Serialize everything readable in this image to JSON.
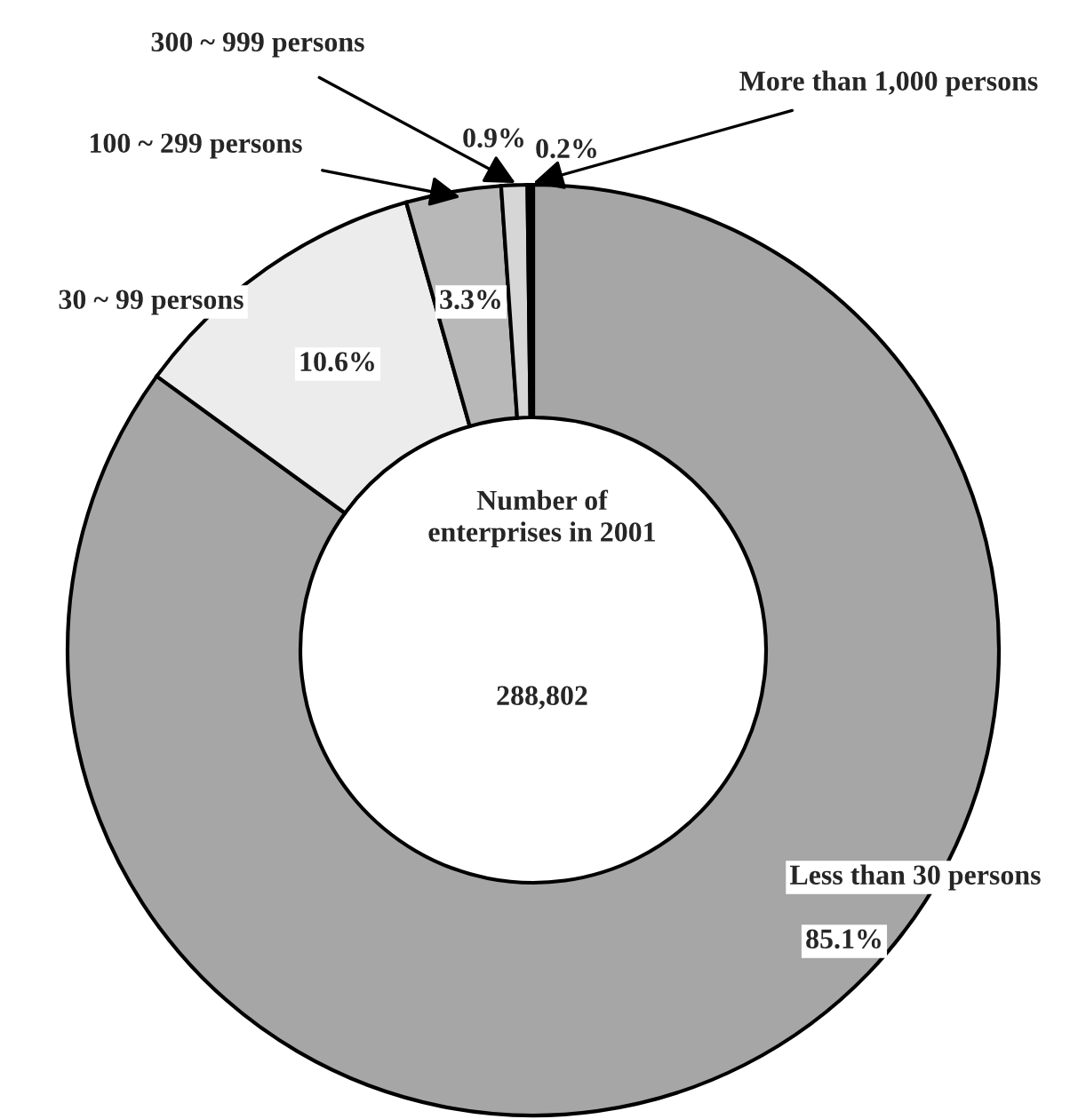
{
  "chart_data": {
    "type": "donut",
    "categories": [
      "Less than 30 persons",
      "30 ~ 99 persons",
      "100 ~ 299 persons",
      "300 ~ 999 persons",
      "More than 1,000 persons"
    ],
    "values": [
      85.1,
      10.6,
      3.3,
      0.9,
      0.2
    ],
    "colors": [
      "#a6a6a6",
      "#ececec",
      "#b8b8b8",
      "#d6d6d6",
      "#000000"
    ],
    "value_labels": [
      "85.1%",
      "10.6%",
      "3.3%",
      "0.9%",
      "0.2%"
    ],
    "annotations": [
      "Number of\nenterprises in 2001",
      "288,802"
    ]
  }
}
